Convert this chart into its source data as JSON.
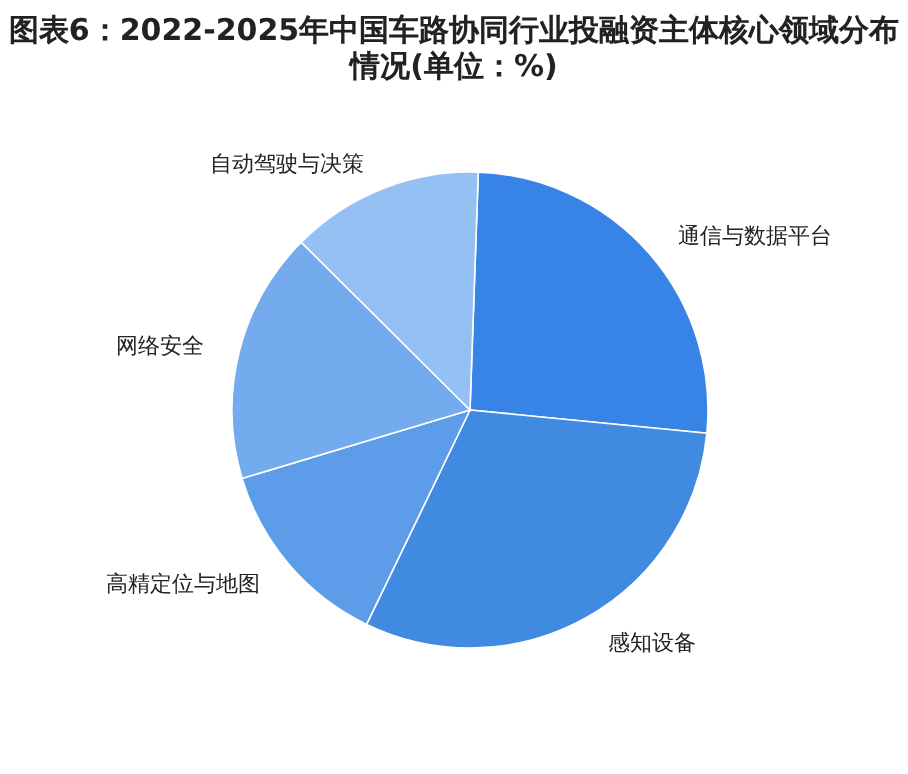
{
  "chart_data": {
    "type": "pie",
    "title": "图表6：2022-2025年中国车路协同行业投融资主体核心领域分布情况(单位：%)",
    "categories": [
      "通信与数据平台",
      "感知设备",
      "高精定位与地图",
      "网络安全",
      "自动驾驶与决策"
    ],
    "values": [
      26,
      30.6,
      13.2,
      17.1,
      13.1
    ],
    "colors": [
      "#3784e6",
      "#418ae2",
      "#5c9ce9",
      "#74abee",
      "#95c0f4"
    ],
    "legend": false
  }
}
